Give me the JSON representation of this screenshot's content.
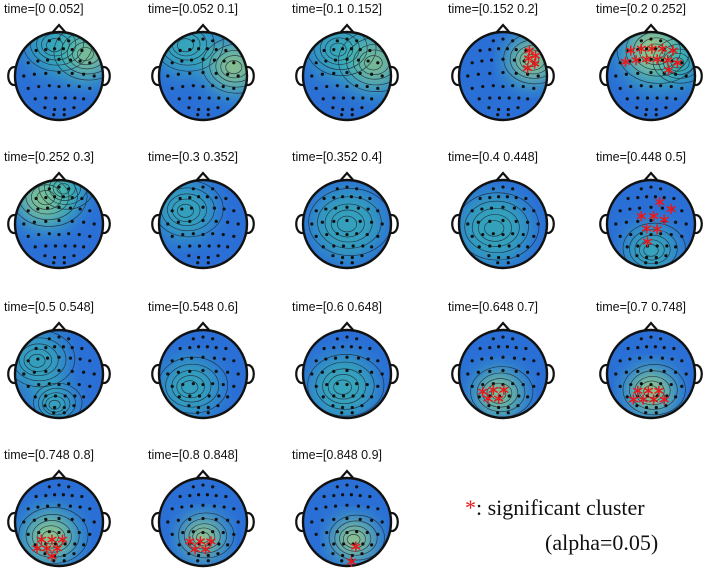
{
  "panels": [
    {
      "title": "time=[0 0.052]",
      "significant_cluster": false
    },
    {
      "title": "time=[0.052 0.1]",
      "significant_cluster": false
    },
    {
      "title": "time=[0.1 0.152]",
      "significant_cluster": false
    },
    {
      "title": "time=[0.152 0.2]",
      "significant_cluster": true
    },
    {
      "title": "time=[0.2 0.252]",
      "significant_cluster": true
    },
    {
      "title": "time=[0.252 0.3]",
      "significant_cluster": false
    },
    {
      "title": "time=[0.3 0.352]",
      "significant_cluster": false
    },
    {
      "title": "time=[0.352 0.4]",
      "significant_cluster": false
    },
    {
      "title": "time=[0.4 0.448]",
      "significant_cluster": false
    },
    {
      "title": "time=[0.448 0.5]",
      "significant_cluster": true
    },
    {
      "title": "time=[0.5 0.548]",
      "significant_cluster": false
    },
    {
      "title": "time=[0.548 0.6]",
      "significant_cluster": false
    },
    {
      "title": "time=[0.6 0.648]",
      "significant_cluster": false
    },
    {
      "title": "time=[0.648 0.7]",
      "significant_cluster": true
    },
    {
      "title": "time=[0.7 0.748]",
      "significant_cluster": true
    },
    {
      "title": "time=[0.748 0.8]",
      "significant_cluster": true
    },
    {
      "title": "time=[0.8 0.848]",
      "significant_cluster": true
    },
    {
      "title": "time=[0.848 0.9]",
      "significant_cluster": true
    }
  ],
  "legend": {
    "symbol": "*",
    "line1": ": significant cluster",
    "line2": "(alpha=0.05)"
  },
  "colors": {
    "low": "#2a6fd6",
    "mid": "#3ab8b0",
    "high": "#e8d84a",
    "marker": "#e8191c",
    "outline": "#111111"
  }
}
